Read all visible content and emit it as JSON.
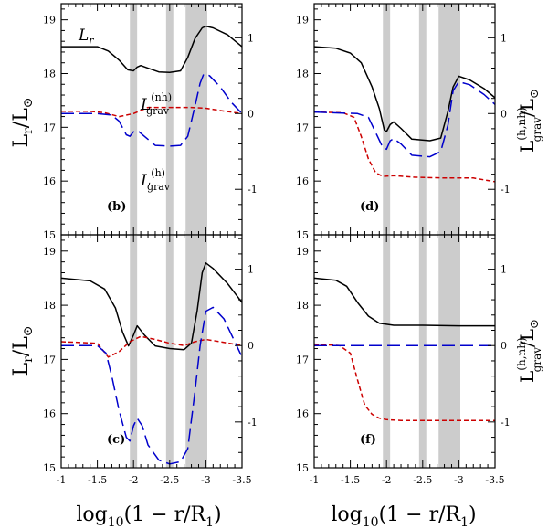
{
  "chart_data": {
    "type": "line",
    "x_axis": {
      "label": "log10(1 - r/R1)",
      "label_main": "log",
      "label_sub": "10",
      "label_rest": "(1 − r/R",
      "label_sub2": "1",
      "label_end": ")",
      "xlim": [
        -1.0,
        -3.5
      ],
      "ticks": [
        -1.0,
        -1.5,
        -2.0,
        -2.5,
        -3.0,
        -3.5
      ],
      "tick_labels": [
        "-1",
        "-1.5",
        "-2",
        "-2.5",
        "-3",
        "-3.5"
      ]
    },
    "left_axis": {
      "label": "Lr/L⊙",
      "label_main": "L",
      "label_sub": "r",
      "label_rest": "/L",
      "label_sub2": "⊙",
      "ylim": [
        15.0,
        19.3
      ],
      "ticks": [
        15,
        16,
        17,
        18,
        19
      ],
      "tick_labels": [
        "15",
        "16",
        "17",
        "18",
        "19"
      ]
    },
    "right_axis": {
      "label": "L_grav^(h,nh)/L⊙",
      "label_main": "L",
      "label_sup": "(h,nh)",
      "label_sub": "grav",
      "label_rest": "/L",
      "label_sub2": "⊙",
      "ylim": [
        -1.6,
        1.45
      ],
      "ticks": [
        -1,
        0,
        1
      ],
      "tick_labels": [
        "-1",
        "0",
        "1"
      ]
    },
    "shaded_bands": [
      [
        -1.95,
        -2.05
      ],
      [
        -2.45,
        -2.55
      ],
      [
        -2.72,
        -3.02
      ]
    ],
    "series_styles": {
      "Lr": {
        "color": "#000000",
        "dash": "none"
      },
      "Lgrav_nh": {
        "color": "#cc0000",
        "dash": "5,3"
      },
      "Lgrav_h": {
        "color": "#0000cc",
        "dash": "14,6"
      }
    },
    "panels": [
      {
        "id": "b",
        "label": "(b)",
        "annotations": [
          {
            "text": "Lr",
            "main": "L",
            "sub": "r"
          },
          {
            "text": "L_grav^(nh)",
            "main": "L",
            "sup": "(nh)",
            "sub": "grav"
          },
          {
            "text": "L_grav^(h)",
            "main": "L",
            "sup": "(h)",
            "sub": "grav"
          }
        ],
        "series": [
          {
            "name": "Lr",
            "axis": "left",
            "x": [
              -1.0,
              -1.5,
              -1.65,
              -1.8,
              -1.92,
              -2.0,
              -2.05,
              -2.1,
              -2.2,
              -2.35,
              -2.5,
              -2.65,
              -2.75,
              -2.85,
              -2.95,
              -3.0,
              -3.1,
              -3.3,
              -3.5
            ],
            "y": [
              18.5,
              18.5,
              18.42,
              18.25,
              18.07,
              18.05,
              18.12,
              18.15,
              18.1,
              18.03,
              18.02,
              18.05,
              18.3,
              18.65,
              18.85,
              18.88,
              18.85,
              18.72,
              18.5
            ]
          },
          {
            "name": "Lgrav_nh",
            "axis": "right",
            "x": [
              -1.0,
              -1.4,
              -1.6,
              -1.8,
              -2.0,
              -2.2,
              -2.5,
              -2.8,
              -3.0,
              -3.2,
              -3.5
            ],
            "y": [
              0.03,
              0.03,
              0.01,
              -0.04,
              0.0,
              0.08,
              0.08,
              0.08,
              0.07,
              0.04,
              0.0
            ]
          },
          {
            "name": "Lgrav_h",
            "axis": "right",
            "x": [
              -1.0,
              -1.5,
              -1.7,
              -1.8,
              -1.9,
              -1.95,
              -2.0,
              -2.05,
              -2.15,
              -2.3,
              -2.5,
              -2.65,
              -2.75,
              -2.85,
              -2.92,
              -2.97,
              -3.05,
              -3.2,
              -3.35,
              -3.5
            ],
            "y": [
              0.0,
              0.0,
              -0.02,
              -0.1,
              -0.28,
              -0.3,
              -0.24,
              -0.22,
              -0.3,
              -0.42,
              -0.43,
              -0.42,
              -0.3,
              0.1,
              0.4,
              0.52,
              0.5,
              0.35,
              0.15,
              0.0
            ]
          }
        ]
      },
      {
        "id": "d",
        "label": "(d)",
        "annotations": [],
        "series": [
          {
            "name": "Lr",
            "axis": "left",
            "x": [
              -1.0,
              -1.3,
              -1.5,
              -1.65,
              -1.8,
              -1.9,
              -1.97,
              -2.0,
              -2.05,
              -2.1,
              -2.2,
              -2.35,
              -2.6,
              -2.75,
              -2.85,
              -2.92,
              -3.0,
              -3.15,
              -3.35,
              -3.5
            ],
            "y": [
              18.5,
              18.47,
              18.38,
              18.2,
              17.75,
              17.35,
              16.95,
              16.92,
              17.05,
              17.1,
              16.98,
              16.78,
              16.75,
              16.8,
              17.3,
              17.75,
              17.95,
              17.88,
              17.72,
              17.55
            ]
          },
          {
            "name": "Lgrav_nh",
            "axis": "right",
            "x": [
              -1.0,
              -1.4,
              -1.55,
              -1.65,
              -1.75,
              -1.85,
              -1.95,
              -2.1,
              -2.4,
              -2.8,
              -3.2,
              -3.5
            ],
            "y": [
              0.02,
              0.01,
              -0.05,
              -0.3,
              -0.6,
              -0.78,
              -0.83,
              -0.82,
              -0.84,
              -0.85,
              -0.85,
              -0.9
            ]
          },
          {
            "name": "Lgrav_h",
            "axis": "right",
            "x": [
              -1.0,
              -1.6,
              -1.75,
              -1.85,
              -1.95,
              -2.0,
              -2.05,
              -2.1,
              -2.2,
              -2.35,
              -2.6,
              -2.75,
              -2.85,
              -2.92,
              -3.0,
              -3.15,
              -3.35,
              -3.5
            ],
            "y": [
              0.02,
              0.0,
              -0.05,
              -0.25,
              -0.45,
              -0.47,
              -0.36,
              -0.33,
              -0.4,
              -0.55,
              -0.57,
              -0.5,
              -0.15,
              0.3,
              0.42,
              0.38,
              0.25,
              0.12
            ]
          }
        ]
      },
      {
        "id": "c",
        "label": "(c)",
        "annotations": [],
        "series": [
          {
            "name": "Lr",
            "axis": "left",
            "x": [
              -1.0,
              -1.4,
              -1.6,
              -1.75,
              -1.85,
              -1.93,
              -2.0,
              -2.05,
              -2.15,
              -2.3,
              -2.5,
              -2.7,
              -2.8,
              -2.88,
              -2.95,
              -3.0,
              -3.1,
              -3.3,
              -3.5
            ],
            "y": [
              18.5,
              18.45,
              18.3,
              17.95,
              17.5,
              17.25,
              17.45,
              17.62,
              17.45,
              17.25,
              17.2,
              17.18,
              17.3,
              17.9,
              18.6,
              18.78,
              18.68,
              18.4,
              18.05
            ]
          },
          {
            "name": "Lgrav_nh",
            "axis": "right",
            "x": [
              -1.0,
              -1.5,
              -1.65,
              -1.8,
              -1.95,
              -2.1,
              -2.3,
              -2.5,
              -2.7,
              -2.85,
              -3.0,
              -3.2,
              -3.5
            ],
            "y": [
              0.05,
              0.03,
              -0.15,
              -0.08,
              0.05,
              0.12,
              0.08,
              0.03,
              0.0,
              0.05,
              0.08,
              0.05,
              0.0
            ]
          },
          {
            "name": "Lgrav_h",
            "axis": "right",
            "x": [
              -1.0,
              -1.5,
              -1.62,
              -1.7,
              -1.8,
              -1.9,
              -1.95,
              -2.0,
              -2.05,
              -2.12,
              -2.2,
              -2.35,
              -2.5,
              -2.65,
              -2.75,
              -2.85,
              -2.92,
              -3.0,
              -3.1,
              -3.25,
              -3.4,
              -3.5
            ],
            "y": [
              0.0,
              0.0,
              -0.1,
              -0.4,
              -0.85,
              -1.2,
              -1.25,
              -1.05,
              -0.95,
              -1.05,
              -1.3,
              -1.5,
              -1.55,
              -1.52,
              -1.35,
              -0.6,
              0.0,
              0.45,
              0.5,
              0.35,
              0.05,
              -0.15
            ]
          }
        ]
      },
      {
        "id": "f",
        "label": "(f)",
        "annotations": [],
        "series": [
          {
            "name": "Lr",
            "axis": "left",
            "x": [
              -1.0,
              -1.3,
              -1.45,
              -1.6,
              -1.75,
              -1.9,
              -2.1,
              -2.5,
              -3.0,
              -3.5
            ],
            "y": [
              18.5,
              18.46,
              18.35,
              18.05,
              17.8,
              17.67,
              17.63,
              17.63,
              17.62,
              17.62
            ]
          },
          {
            "name": "Lgrav_nh",
            "axis": "right",
            "x": [
              -1.0,
              -1.35,
              -1.5,
              -1.6,
              -1.7,
              -1.8,
              -1.9,
              -2.0,
              -2.2,
              -2.6,
              -3.0,
              -3.5
            ],
            "y": [
              0.02,
              0.0,
              -0.1,
              -0.45,
              -0.78,
              -0.9,
              -0.95,
              -0.97,
              -0.98,
              -0.98,
              -0.98,
              -0.98
            ]
          },
          {
            "name": "Lgrav_h",
            "axis": "right",
            "x": [
              -1.0,
              -3.5
            ],
            "y": [
              0.0,
              0.0
            ]
          }
        ]
      }
    ]
  }
}
